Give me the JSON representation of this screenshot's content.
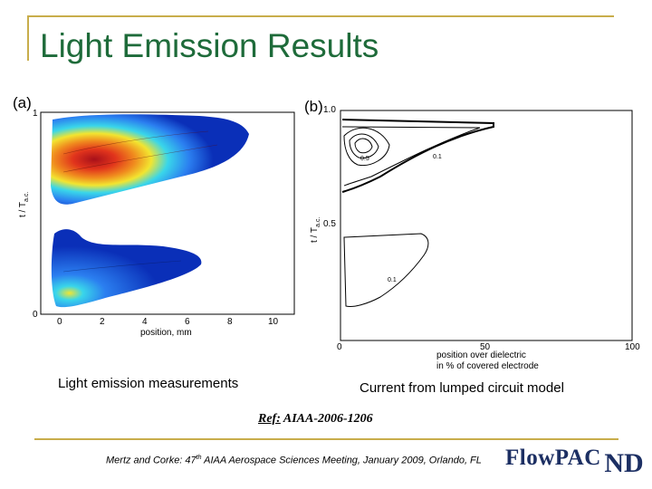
{
  "slide": {
    "title": "Light Emission Results",
    "colors": {
      "title": "#1e6b3a",
      "accent_line": "#c8ad4b",
      "logo": "#1c2f63"
    }
  },
  "panel_a": {
    "label": "(a)",
    "ylabel": "t / T",
    "ylabel_sub": "a.c.",
    "xlabel": "position, mm",
    "yticks": [
      "1",
      "0"
    ],
    "xticks": [
      "0",
      "2",
      "4",
      "6",
      "8",
      "10"
    ],
    "caption": "Light emission measurements",
    "colormap": [
      "#0a2fb8",
      "#2b7ff0",
      "#39d6ea",
      "#f2e530",
      "#f08a1e",
      "#c8151b"
    ]
  },
  "panel_b": {
    "label": "(b)",
    "ylabel": "t / T",
    "ylabel_sub": "a.c.",
    "xlabel_line1": "position over dielectric",
    "xlabel_line2": "in % of covered electrode",
    "yticks": [
      "1.0",
      "0.5"
    ],
    "xticks": [
      "0",
      "50",
      "100"
    ],
    "contour_labels": [
      "0.5",
      "0.1",
      "0.1"
    ],
    "caption": "Current from lumped circuit model"
  },
  "reference": {
    "prefix": "Ref:",
    "text": "AIAA-2006-1206"
  },
  "footer": {
    "before": "Mertz and Corke: 47",
    "sup": "th",
    "after": " AIAA Aerospace Sciences Meeting, January 2009, Orlando, FL"
  },
  "logo": {
    "text": "FlowPAC",
    "mark": "ND"
  }
}
